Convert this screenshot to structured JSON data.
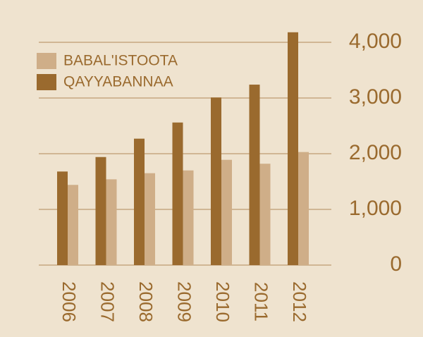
{
  "chart_data": {
    "type": "bar",
    "categories": [
      "2006",
      "2007",
      "2008",
      "2009",
      "2010",
      "2011",
      "2012"
    ],
    "series": [
      {
        "name": "BABAL'ISTOOTA",
        "color": "#cfae88",
        "values": [
          1440,
          1540,
          1650,
          1700,
          1890,
          1820,
          2030
        ]
      },
      {
        "name": "QAYYABANNAA",
        "color": "#9a6a2e",
        "values": [
          1680,
          1940,
          2270,
          2560,
          3010,
          3240,
          4180
        ]
      }
    ],
    "ylim": [
      0,
      4000
    ],
    "yticks": [
      0,
      {
        "value": 1000,
        "label": "1,000"
      },
      {
        "value": 2000,
        "label": "2,000"
      },
      {
        "value": 3000,
        "label": "3,000"
      },
      {
        "value": 4000,
        "label": "4,000"
      }
    ],
    "grid": true,
    "y_axis_side": "right",
    "legend": "top-left"
  }
}
